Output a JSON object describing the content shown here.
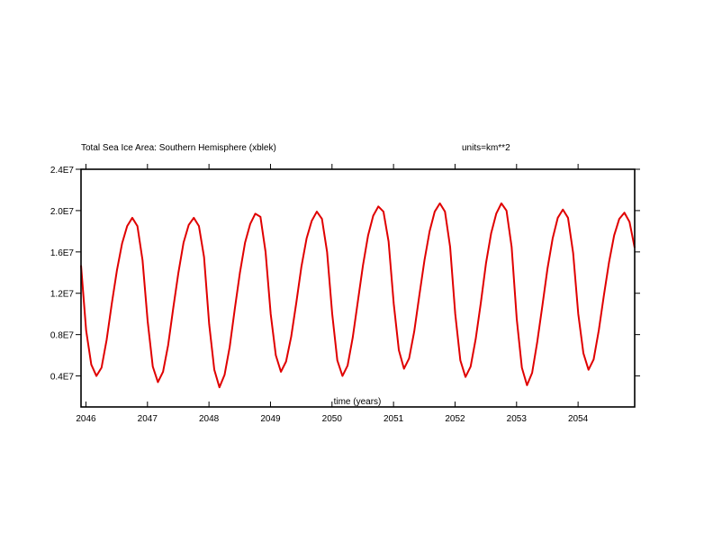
{
  "chart_data": {
    "type": "line",
    "title": "Total Sea Ice Area: Southern Hemisphere (xblek)",
    "units_label": "units=km**2",
    "xlabel": "time (years)",
    "ylabel": "",
    "xlim": [
      2045.92,
      2054.92
    ],
    "ylim": [
      1000000.0,
      24000000.0
    ],
    "x_ticks": [
      2046,
      2047,
      2048,
      2049,
      2050,
      2051,
      2052,
      2053,
      2054
    ],
    "x_tick_labels": [
      "2046",
      "2047",
      "2048",
      "2049",
      "2050",
      "2051",
      "2052",
      "2053",
      "2054"
    ],
    "y_ticks": [
      4000000.0,
      8000000.0,
      12000000.0,
      16000000.0,
      20000000.0,
      24000000.0
    ],
    "y_tick_labels": [
      "0.4E7",
      "0.8E7",
      "1.2E7",
      "1.6E7",
      "2.0E7",
      "2.4E7"
    ],
    "grid": false,
    "series": [
      {
        "color": "#e00000",
        "x_start": 2045.92,
        "x_step": 0.08333,
        "values": [
          14700000.0,
          8400000.0,
          5100000.0,
          4000000.0,
          4800000.0,
          7500000.0,
          11000000.0,
          14200000.0,
          16800000.0,
          18500000.0,
          19300000.0,
          18500000.0,
          15200000.0,
          9300000.0,
          4900000.0,
          3400000.0,
          4400000.0,
          7000000.0,
          10600000.0,
          14000000.0,
          16900000.0,
          18600000.0,
          19300000.0,
          18500000.0,
          15500000.0,
          9000000.0,
          4600000.0,
          2900000.0,
          4100000.0,
          6800000.0,
          10500000.0,
          14000000.0,
          16900000.0,
          18700000.0,
          19700000.0,
          19400000.0,
          16000000.0,
          10000000.0,
          6000000.0,
          4400000.0,
          5400000.0,
          7800000.0,
          11100000.0,
          14600000.0,
          17300000.0,
          19000000.0,
          19900000.0,
          19200000.0,
          16000000.0,
          10000000.0,
          5500000.0,
          4000000.0,
          5000000.0,
          7700000.0,
          11200000.0,
          14700000.0,
          17600000.0,
          19500000.0,
          20400000.0,
          19900000.0,
          17000000.0,
          11000000.0,
          6500000.0,
          4700000.0,
          5700000.0,
          8300000.0,
          11800000.0,
          15200000.0,
          18000000.0,
          19900000.0,
          20700000.0,
          19900000.0,
          16500000.0,
          10000000.0,
          5500000.0,
          3900000.0,
          4900000.0,
          7600000.0,
          11100000.0,
          14900000.0,
          17800000.0,
          19700000.0,
          20700000.0,
          20000000.0,
          16500000.0,
          9500000.0,
          4800000.0,
          3100000.0,
          4300000.0,
          7300000.0,
          10800000.0,
          14400000.0,
          17300000.0,
          19300000.0,
          20100000.0,
          19300000.0,
          15900000.0,
          10000000.0,
          6200000.0,
          4600000.0,
          5600000.0,
          8400000.0,
          11800000.0,
          15000000.0,
          17600000.0,
          19200000.0,
          19800000.0,
          18900000.0,
          16400000.0
        ]
      }
    ]
  }
}
